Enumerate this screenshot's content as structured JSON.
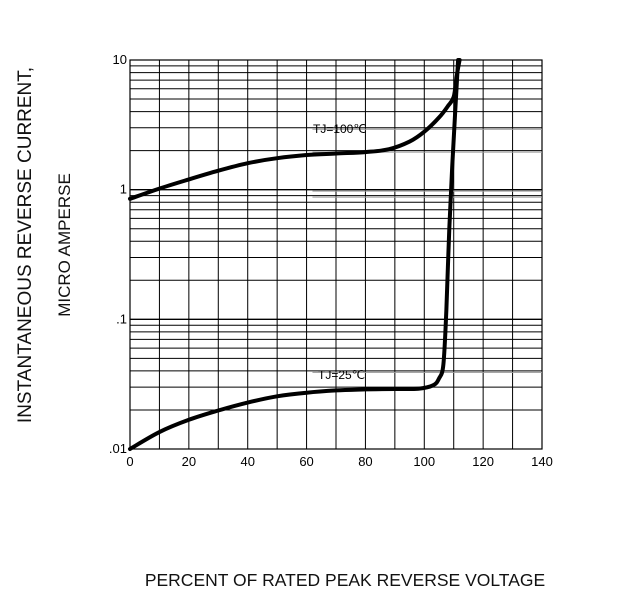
{
  "chart_data": {
    "type": "line",
    "title": "",
    "xlabel": "PERCENT OF RATED PEAK REVERSE VOLTAGE",
    "ylabel": [
      "INSTANTANEOUS REVERSE CURRENT,",
      "MICRO AMPERSE"
    ],
    "xlim": [
      0,
      140
    ],
    "ylim": [
      0.01,
      10
    ],
    "yscale": "log",
    "grid": true,
    "x_ticks": [
      "0",
      "20",
      "40",
      "60",
      "80",
      "100",
      "120",
      "140"
    ],
    "y_ticks": [
      {
        "value": 10,
        "label": "10"
      },
      {
        "value": 1,
        "label": "1"
      },
      {
        "value": 0.1,
        "label": ".1"
      },
      {
        "value": 0.01,
        "label": ".01"
      }
    ],
    "series": [
      {
        "name": "TJ=100℃",
        "x": [
          0,
          10,
          20,
          30,
          40,
          50,
          60,
          70,
          80,
          88,
          95,
          100,
          105,
          108,
          110,
          111,
          112
        ],
        "y": [
          0.85,
          1.02,
          1.2,
          1.4,
          1.6,
          1.75,
          1.85,
          1.9,
          1.95,
          2.05,
          2.35,
          2.8,
          3.6,
          4.4,
          5.2,
          7.5,
          10
        ]
      },
      {
        "name": "TJ=25℃",
        "x": [
          0,
          10,
          20,
          30,
          40,
          50,
          60,
          70,
          80,
          90,
          98,
          103,
          105,
          106.5,
          107.5,
          108.5,
          109.5,
          110.5,
          111.5
        ],
        "y": [
          0.01,
          0.0135,
          0.0168,
          0.0198,
          0.0228,
          0.0255,
          0.0272,
          0.0283,
          0.0288,
          0.029,
          0.0292,
          0.031,
          0.035,
          0.045,
          0.12,
          0.5,
          1.5,
          4,
          10
        ]
      }
    ],
    "annotations": [
      {
        "series": "TJ=100℃",
        "text": "TJ=100℃"
      },
      {
        "series": "TJ=25℃",
        "text": "TJ=25℃"
      }
    ]
  }
}
